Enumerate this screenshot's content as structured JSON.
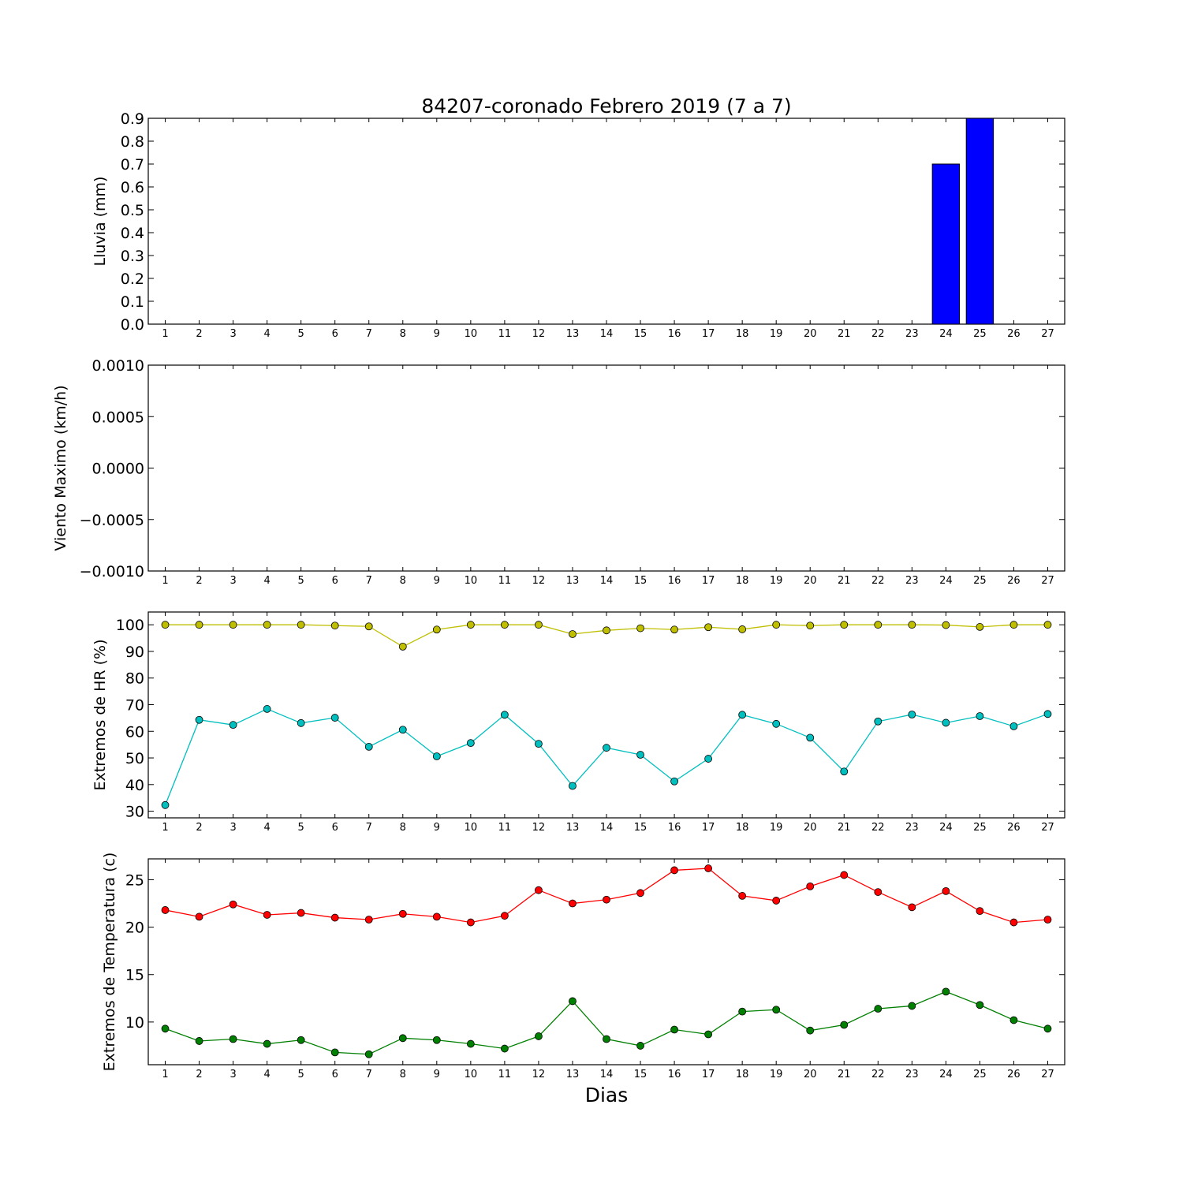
{
  "figure": {
    "title": "84207-coronado Febrero 2019  (7 a 7)",
    "xlabel": "Dias"
  },
  "chart_data": [
    {
      "type": "bar",
      "ylabel": "Lluvia (mm)",
      "categories": [
        "1",
        "2",
        "3",
        "4",
        "5",
        "6",
        "7",
        "8",
        "9",
        "10",
        "11",
        "12",
        "13",
        "14",
        "15",
        "16",
        "17",
        "18",
        "19",
        "20",
        "21",
        "22",
        "23",
        "24",
        "25",
        "26",
        "27"
      ],
      "values": [
        0,
        0,
        0,
        0,
        0,
        0,
        0,
        0,
        0,
        0,
        0,
        0,
        0,
        0,
        0,
        0,
        0,
        0,
        0,
        0,
        0,
        0,
        0,
        0.7,
        0.9,
        0,
        0
      ],
      "ylim": [
        0,
        0.9
      ],
      "yticks": [
        "0.0",
        "0.1",
        "0.2",
        "0.3",
        "0.4",
        "0.5",
        "0.6",
        "0.7",
        "0.8",
        "0.9"
      ],
      "colors": {
        "bar": "#0000ff"
      }
    },
    {
      "type": "line",
      "ylabel": "Viento Maximo (km/h)",
      "categories": [
        "1",
        "2",
        "3",
        "4",
        "5",
        "6",
        "7",
        "8",
        "9",
        "10",
        "11",
        "12",
        "13",
        "14",
        "15",
        "16",
        "17",
        "18",
        "19",
        "20",
        "21",
        "22",
        "23",
        "24",
        "25",
        "26",
        "27"
      ],
      "series": [],
      "ylim": [
        -0.001,
        0.001
      ],
      "yticks": [
        "−0.0010",
        "−0.0005",
        "0.0000",
        "0.0005",
        "0.0010"
      ]
    },
    {
      "type": "line",
      "ylabel": "Extremos de HR (%)",
      "categories": [
        "1",
        "2",
        "3",
        "4",
        "5",
        "6",
        "7",
        "8",
        "9",
        "10",
        "11",
        "12",
        "13",
        "14",
        "15",
        "16",
        "17",
        "18",
        "19",
        "20",
        "21",
        "22",
        "23",
        "24",
        "25",
        "26",
        "27"
      ],
      "series": [
        {
          "values": [
            100,
            100,
            100,
            100,
            100,
            99.7,
            99.4,
            91.8,
            98.2,
            100,
            100,
            100,
            96.5,
            97.9,
            98.7,
            98.2,
            99.1,
            98.3,
            100,
            99.7,
            100,
            100,
            100,
            99.9,
            99.2,
            100,
            100
          ],
          "color": "#bfbf00"
        },
        {
          "values": [
            32.3,
            64.3,
            62.4,
            68.4,
            63.1,
            65.1,
            54.2,
            60.6,
            50.6,
            55.6,
            66.2,
            55.3,
            39.5,
            53.8,
            51.2,
            41.2,
            49.7,
            66.2,
            62.8,
            57.6,
            44.9,
            63.7,
            66.3,
            63.2,
            65.7,
            61.9,
            66.5
          ],
          "color": "#00bfbf"
        }
      ],
      "ylim": [
        27.5,
        104.8
      ],
      "yticks": [
        "30",
        "40",
        "50",
        "60",
        "70",
        "80",
        "90",
        "100"
      ]
    },
    {
      "type": "line",
      "ylabel": "Extremos de Temperatura (c)",
      "categories": [
        "1",
        "2",
        "3",
        "4",
        "5",
        "6",
        "7",
        "8",
        "9",
        "10",
        "11",
        "12",
        "13",
        "14",
        "15",
        "16",
        "17",
        "18",
        "19",
        "20",
        "21",
        "22",
        "23",
        "24",
        "25",
        "26",
        "27"
      ],
      "series": [
        {
          "values": [
            21.8,
            21.1,
            22.4,
            21.3,
            21.5,
            21.0,
            20.8,
            21.4,
            21.1,
            20.5,
            21.2,
            23.9,
            22.5,
            22.9,
            23.6,
            26.0,
            26.2,
            23.3,
            22.8,
            24.3,
            25.5,
            23.7,
            22.1,
            23.8,
            21.7,
            20.5,
            20.8
          ],
          "color": "#ff0000"
        },
        {
          "values": [
            9.3,
            8.0,
            8.2,
            7.7,
            8.1,
            6.8,
            6.6,
            8.3,
            8.1,
            7.7,
            7.2,
            8.5,
            12.2,
            8.2,
            7.5,
            9.2,
            8.7,
            11.1,
            11.3,
            9.1,
            9.7,
            11.4,
            11.7,
            13.2,
            11.8,
            10.2,
            9.3
          ],
          "color": "#008000"
        }
      ],
      "ylim": [
        5.5,
        27.2
      ],
      "yticks": [
        "10",
        "15",
        "20",
        "25"
      ]
    }
  ]
}
